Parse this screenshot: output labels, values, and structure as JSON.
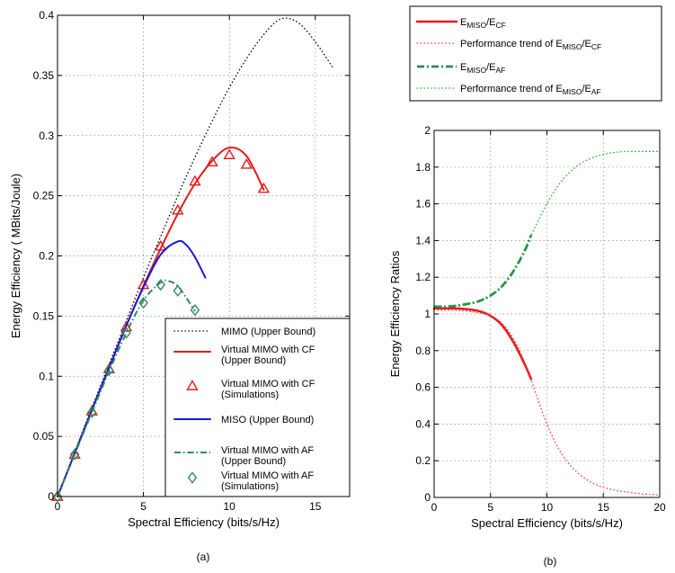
{
  "colors": {
    "mimo": "#000000",
    "cf_line": "#e8191b",
    "cf_marker": "#e8191b",
    "miso": "#1a1ad6",
    "af_line": "#2e8b57",
    "af_marker": "#2e8b57",
    "trend_cf": "#ff3333",
    "trend_af": "#22aa22",
    "grid": "#8c8c8c"
  },
  "chart_data": [
    {
      "type": "line",
      "caption": "(a)",
      "xlabel": "Spectral Efficiency (bits/s/Hz)",
      "ylabel": "Energy Efficiency  ( MBits/Joule)",
      "xlim": [
        0,
        17
      ],
      "ylim": [
        0,
        0.4
      ],
      "xticks": [
        0,
        5,
        10,
        15
      ],
      "xtick_labels": [
        "0",
        "5",
        "10",
        "15"
      ],
      "yticks": [
        0,
        0.05,
        0.1,
        0.15,
        0.2,
        0.25,
        0.3,
        0.35,
        0.4
      ],
      "ytick_labels": [
        "0",
        "0.05",
        "0.1",
        "0.15",
        "0.2",
        "0.25",
        "0.3",
        "0.35",
        "0.4"
      ],
      "grid": true,
      "legend_position": "bottom-right",
      "series": [
        {
          "name": "MIMO (Upper Bound)",
          "style": "dotted",
          "color_key": "mimo",
          "x": [
            0,
            1,
            2,
            3,
            4,
            5,
            6,
            7,
            8,
            9,
            10,
            11,
            12,
            13,
            14,
            15,
            16
          ],
          "y": [
            0,
            0.037,
            0.074,
            0.11,
            0.146,
            0.182,
            0.216,
            0.25,
            0.282,
            0.312,
            0.34,
            0.364,
            0.384,
            0.397,
            0.394,
            0.378,
            0.357
          ]
        },
        {
          "name": "Virtual MIMO with CF\n(Upper Bound)",
          "style": "solid",
          "color_key": "cf_line",
          "x": [
            0,
            1,
            2,
            3,
            4,
            5,
            6,
            7,
            8,
            9,
            10,
            11,
            12
          ],
          "y": [
            0,
            0.036,
            0.072,
            0.107,
            0.142,
            0.175,
            0.206,
            0.235,
            0.26,
            0.279,
            0.29,
            0.283,
            0.255
          ]
        },
        {
          "name": "Virtual MIMO with CF\n(Simulations)",
          "style": "marker-triangle",
          "color_key": "cf_marker",
          "x": [
            0,
            1,
            2,
            3,
            4,
            5,
            6,
            7,
            8,
            9,
            10,
            11,
            12
          ],
          "y": [
            0,
            0.035,
            0.071,
            0.106,
            0.141,
            0.176,
            0.208,
            0.238,
            0.262,
            0.278,
            0.284,
            0.276,
            0.256
          ]
        },
        {
          "name": "MISO (Upper Bound)",
          "style": "solid",
          "color_key": "miso",
          "x": [
            0,
            1,
            2,
            3,
            4,
            5,
            6,
            7,
            7.5,
            8,
            8.6
          ],
          "y": [
            0,
            0.036,
            0.072,
            0.107,
            0.142,
            0.174,
            0.201,
            0.212,
            0.209,
            0.199,
            0.182
          ]
        },
        {
          "name": "Virtual MIMO with AF\n(Upper Bound)",
          "style": "dashdot",
          "color_key": "af_line",
          "x": [
            0,
            1,
            2,
            3,
            4,
            5,
            6,
            6.5,
            7,
            7.5,
            8
          ],
          "y": [
            0,
            0.035,
            0.07,
            0.104,
            0.136,
            0.163,
            0.178,
            0.179,
            0.175,
            0.165,
            0.154
          ]
        },
        {
          "name": "Virtual MIMO with AF\n(Simulations)",
          "style": "marker-diamond",
          "color_key": "af_marker",
          "x": [
            0,
            1,
            2,
            3,
            4,
            5,
            6,
            7,
            8
          ],
          "y": [
            0,
            0.035,
            0.07,
            0.105,
            0.136,
            0.161,
            0.176,
            0.171,
            0.155
          ]
        }
      ]
    },
    {
      "type": "line",
      "caption": "(b)",
      "xlabel": "Spectral Efficiency (bits/s/Hz)",
      "ylabel": "Energy Efficiency Ratios",
      "xlim": [
        0,
        20
      ],
      "ylim": [
        0,
        2
      ],
      "xticks": [
        0,
        5,
        10,
        15,
        20
      ],
      "xtick_labels": [
        "0",
        "5",
        "10",
        "15",
        "20"
      ],
      "yticks": [
        0,
        0.2,
        0.4,
        0.6,
        0.8,
        1,
        1.2,
        1.4,
        1.6,
        1.8,
        2
      ],
      "ytick_labels": [
        "0",
        "0.2",
        "0.4",
        "0.6",
        "0.8",
        "1",
        "1.2",
        "1.4",
        "1.6",
        "1.8",
        "2"
      ],
      "grid": true,
      "legend_position": "above",
      "series": [
        {
          "name_main": "E",
          "name_sub1": "MISO",
          "name_mid": "/E",
          "name_sub2": "CF",
          "name_prefix": "",
          "style": "solid-thick",
          "color_key": "cf_line",
          "x": [
            0,
            1,
            2,
            3,
            4,
            5,
            6,
            7,
            8,
            8.6
          ],
          "y": [
            1.03,
            1.03,
            1.03,
            1.025,
            1.015,
            0.99,
            0.94,
            0.85,
            0.73,
            0.645
          ]
        },
        {
          "name_main": "E",
          "name_sub1": "MISO",
          "name_mid": "/E",
          "name_sub2": "CF",
          "name_prefix": "Performance trend of ",
          "style": "dotted",
          "color_key": "trend_cf",
          "x": [
            0,
            1,
            2,
            3,
            4,
            5,
            6,
            7,
            8,
            9,
            10,
            11,
            12,
            13,
            14,
            15,
            16,
            17,
            18,
            19,
            20
          ],
          "y": [
            1.02,
            1.02,
            1.02,
            1.015,
            1.005,
            0.99,
            0.95,
            0.87,
            0.74,
            0.57,
            0.4,
            0.27,
            0.18,
            0.12,
            0.08,
            0.055,
            0.04,
            0.03,
            0.022,
            0.017,
            0.013
          ]
        },
        {
          "name_main": "E",
          "name_sub1": "MISO",
          "name_mid": "/E",
          "name_sub2": "AF",
          "name_prefix": "",
          "style": "dashdot-thick",
          "color_key": "af_line",
          "x": [
            0,
            1,
            2,
            3,
            4,
            5,
            6,
            7,
            8,
            8.6
          ],
          "y": [
            1.04,
            1.04,
            1.045,
            1.055,
            1.07,
            1.1,
            1.15,
            1.23,
            1.34,
            1.43
          ]
        },
        {
          "name_main": "E",
          "name_sub1": "MISO",
          "name_mid": "/E",
          "name_sub2": "AF",
          "name_prefix": "Performance trend of ",
          "style": "dotted",
          "color_key": "trend_af",
          "x": [
            0,
            1,
            2,
            3,
            4,
            5,
            6,
            7,
            8,
            9,
            10,
            11,
            12,
            13,
            14,
            15,
            16,
            17,
            18,
            19,
            20
          ],
          "y": [
            1.04,
            1.04,
            1.045,
            1.055,
            1.07,
            1.1,
            1.15,
            1.23,
            1.35,
            1.48,
            1.6,
            1.7,
            1.77,
            1.82,
            1.85,
            1.87,
            1.88,
            1.885,
            1.885,
            1.885,
            1.885
          ]
        }
      ]
    }
  ]
}
